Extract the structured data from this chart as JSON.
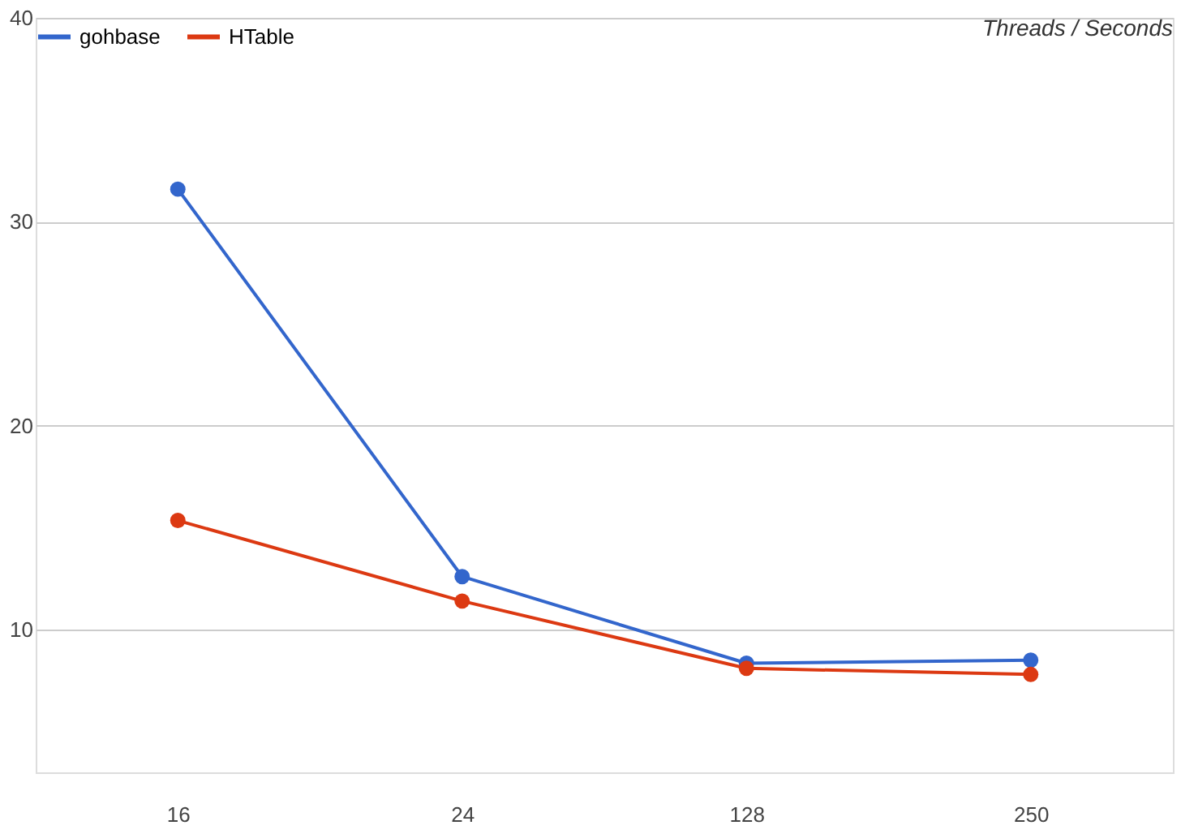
{
  "chart_data": {
    "type": "line",
    "title": "Threads / Seconds",
    "categories": [
      "16",
      "24",
      "128",
      "250"
    ],
    "series": [
      {
        "name": "gohbase",
        "color": "#3366cc",
        "values": [
          31.6,
          12.6,
          8.35,
          8.5
        ]
      },
      {
        "name": "HTable",
        "color": "#dc3912",
        "values": [
          15.35,
          11.4,
          8.1,
          7.8
        ]
      }
    ],
    "ylim": [
      3,
      40
    ],
    "yticks": [
      10,
      20,
      30,
      40
    ],
    "grid": "y",
    "legend": "top left",
    "marker": "circle",
    "line_style": "solid"
  }
}
